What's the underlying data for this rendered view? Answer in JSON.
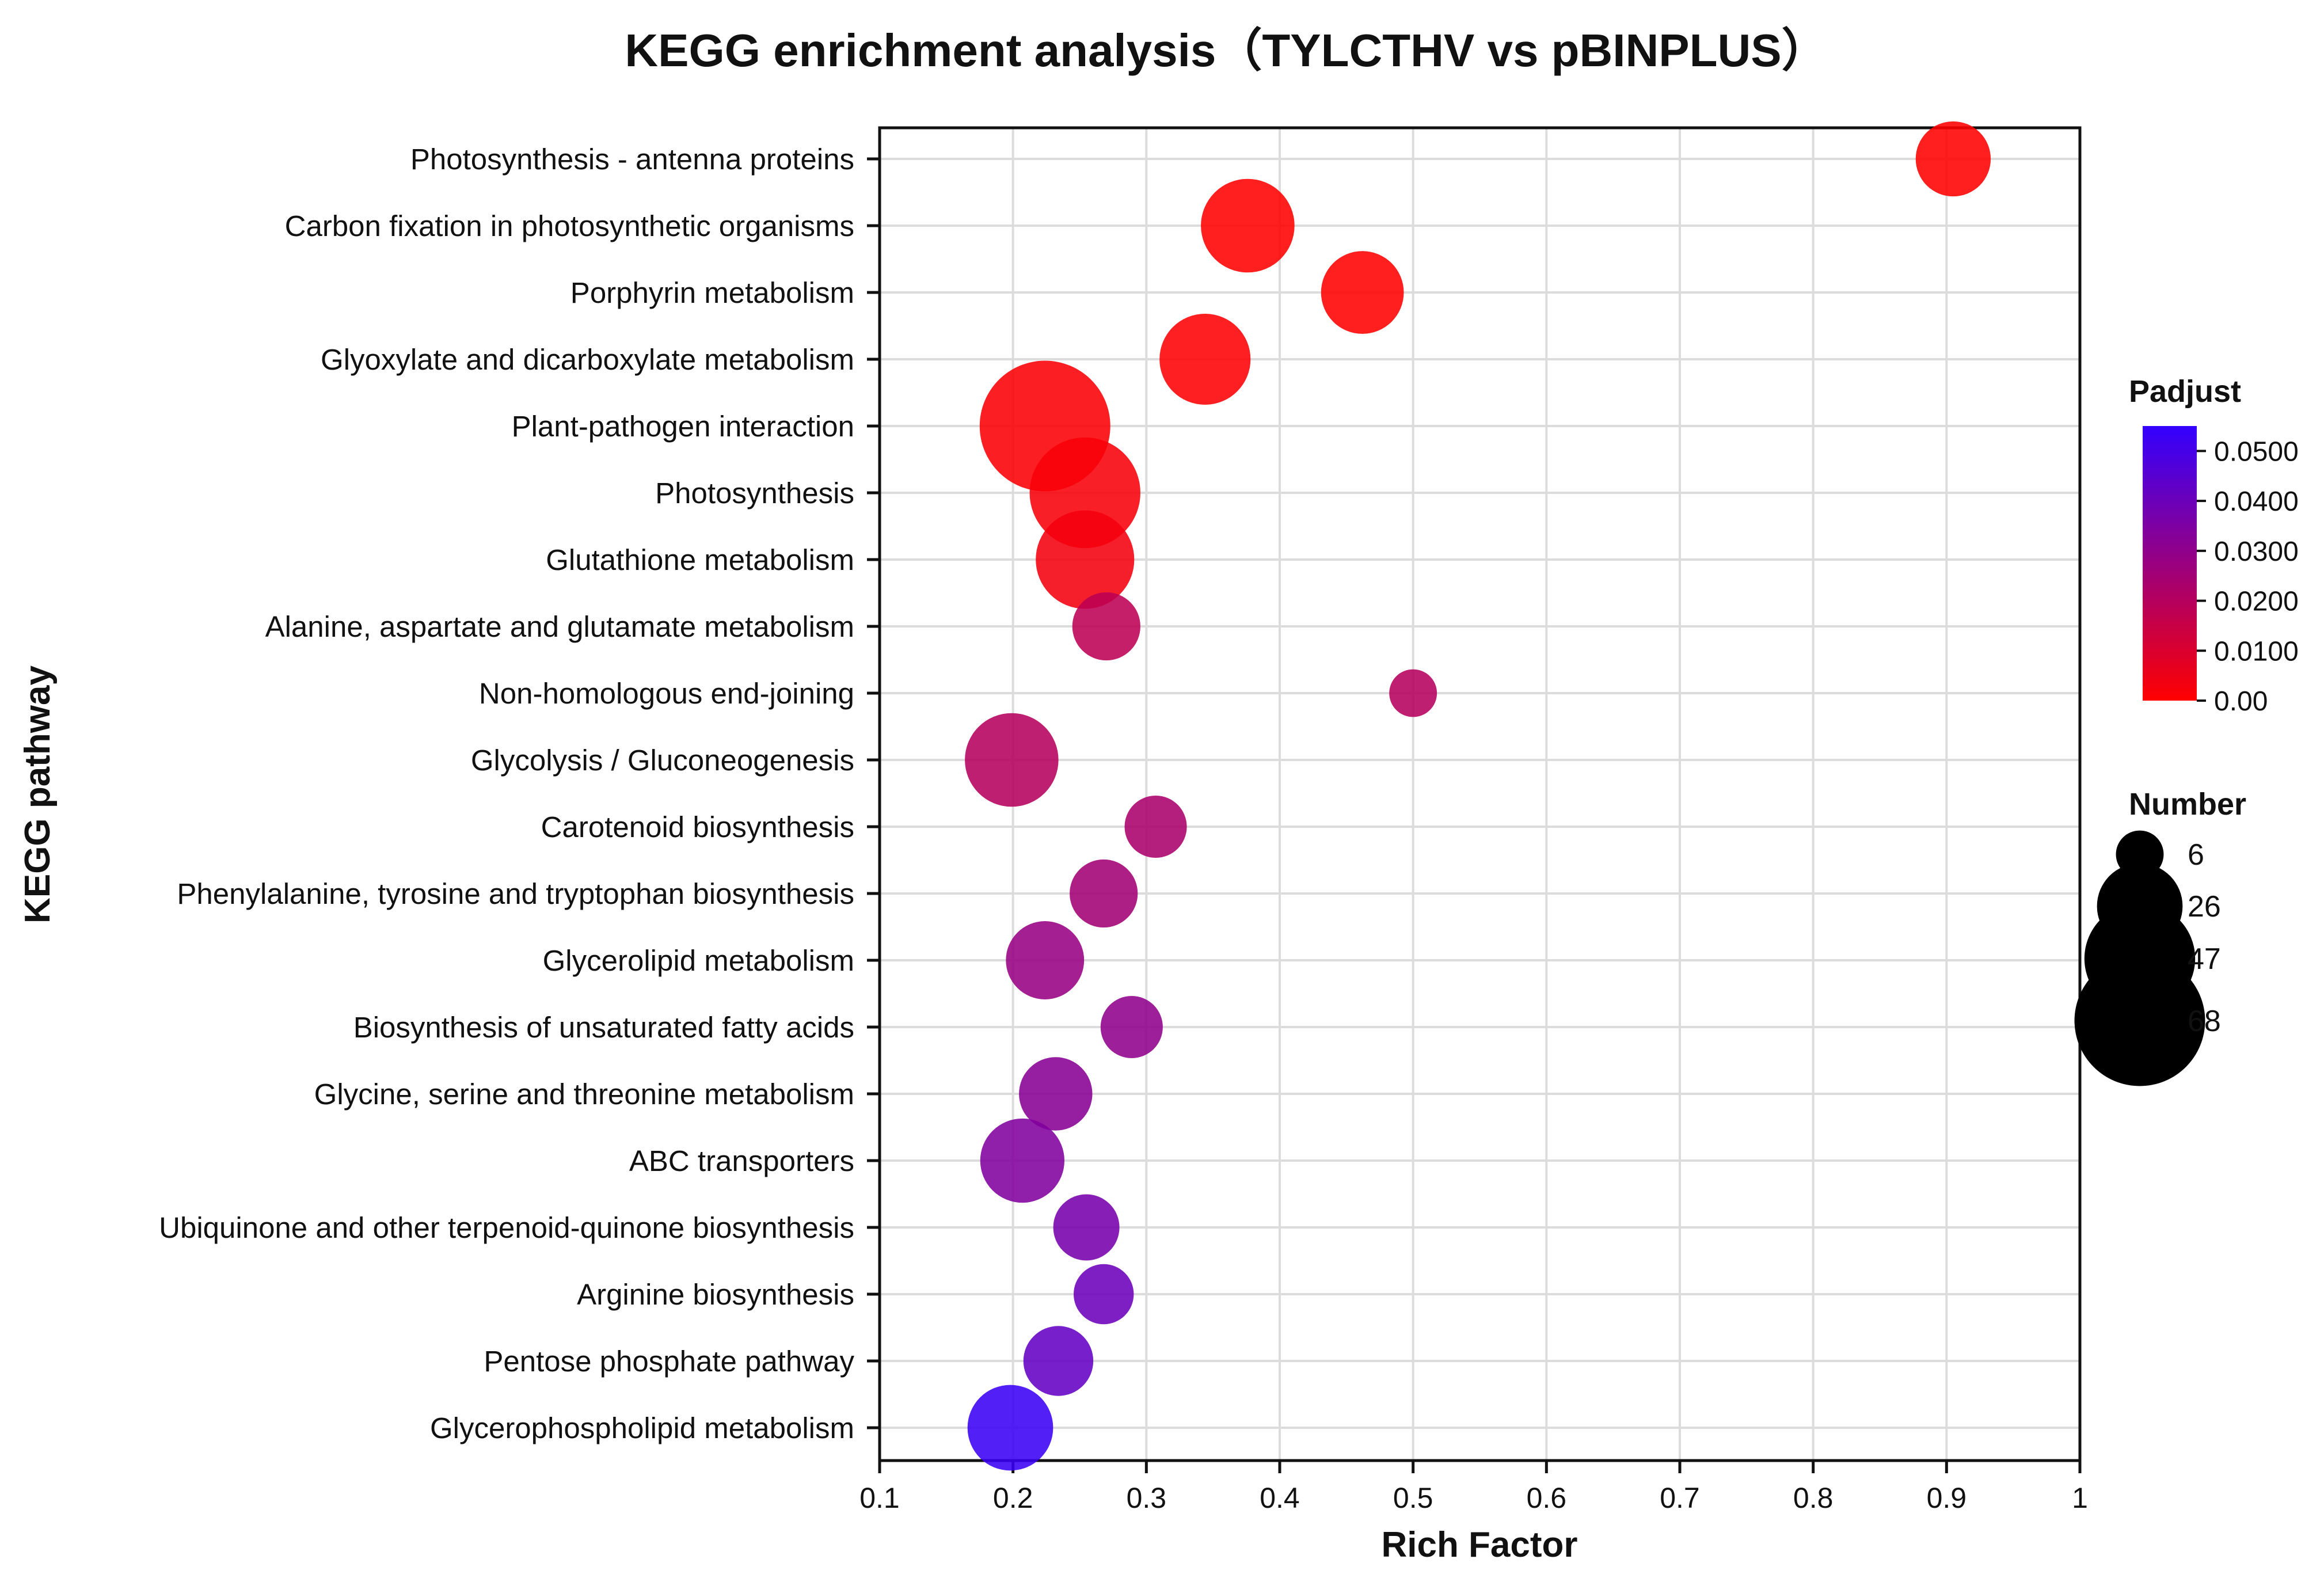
{
  "chart_data": {
    "type": "scatter",
    "title": "KEGG enrichment analysis（TYLCTHV  vs  pBINPLUS）",
    "xlabel": "Rich Factor",
    "ylabel": "KEGG pathway",
    "xlim": [
      0.1,
      1.0
    ],
    "xticks": [
      "0.1",
      "0.2",
      "0.3",
      "0.4",
      "0.5",
      "0.6",
      "0.7",
      "0.8",
      "0.9",
      "1"
    ],
    "grid": true,
    "color_legend": {
      "title": "Padjust",
      "min": 0.0,
      "max": 0.055,
      "low_color": "#ff0000",
      "high_color": "#3300ff",
      "ticks": [
        {
          "value": 0.05,
          "label": "0.0500"
        },
        {
          "value": 0.04,
          "label": "0.0400"
        },
        {
          "value": 0.03,
          "label": "0.0300"
        },
        {
          "value": 0.02,
          "label": "0.0200"
        },
        {
          "value": 0.01,
          "label": "0.0100"
        },
        {
          "value": 0.0,
          "label": "0.00"
        }
      ]
    },
    "size_legend": {
      "title": "Number",
      "entries": [
        {
          "value": 6,
          "label": "6"
        },
        {
          "value": 26,
          "label": "26"
        },
        {
          "value": 47,
          "label": "47"
        },
        {
          "value": 68,
          "label": "68"
        }
      ]
    },
    "points": [
      {
        "pathway": "Photosynthesis - antenna proteins",
        "rich_factor": 0.905,
        "number": 19,
        "padjust": 0.0
      },
      {
        "pathway": "Carbon fixation in photosynthetic organisms",
        "rich_factor": 0.376,
        "number": 32,
        "padjust": 0.0
      },
      {
        "pathway": "Porphyrin metabolism",
        "rich_factor": 0.462,
        "number": 24,
        "padjust": 0.0
      },
      {
        "pathway": "Glyoxylate and dicarboxylate metabolism",
        "rich_factor": 0.344,
        "number": 30,
        "padjust": 0.0005
      },
      {
        "pathway": "Plant-pathogen interaction",
        "rich_factor": 0.224,
        "number": 68,
        "padjust": 0.001
      },
      {
        "pathway": "Photosynthesis",
        "rich_factor": 0.254,
        "number": 47,
        "padjust": 0.002
      },
      {
        "pathway": "Glutathione metabolism",
        "rich_factor": 0.254,
        "number": 36,
        "padjust": 0.003
      },
      {
        "pathway": "Alanine, aspartate and glutamate metabolism",
        "rich_factor": 0.27,
        "number": 15,
        "padjust": 0.018
      },
      {
        "pathway": "Non-homologous end-joining",
        "rich_factor": 0.5,
        "number": 6,
        "padjust": 0.02
      },
      {
        "pathway": "Glycolysis / Gluconeogenesis",
        "rich_factor": 0.199,
        "number": 32,
        "padjust": 0.02
      },
      {
        "pathway": "Carotenoid biosynthesis",
        "rich_factor": 0.307,
        "number": 12,
        "padjust": 0.023
      },
      {
        "pathway": "Phenylalanine, tyrosine and tryptophan  biosynthesis",
        "rich_factor": 0.268,
        "number": 15,
        "padjust": 0.025
      },
      {
        "pathway": "Glycerolipid metabolism",
        "rich_factor": 0.224,
        "number": 21,
        "padjust": 0.028
      },
      {
        "pathway": "Biosynthesis of unsaturated fatty acids",
        "rich_factor": 0.289,
        "number": 12,
        "padjust": 0.03
      },
      {
        "pathway": "Glycine, serine and threonine metabolism",
        "rich_factor": 0.232,
        "number": 18,
        "padjust": 0.032
      },
      {
        "pathway": "ABC transporters",
        "rich_factor": 0.207,
        "number": 25,
        "padjust": 0.034
      },
      {
        "pathway": "Ubiquinone and other terpenoid-quinone biosynthesis",
        "rich_factor": 0.255,
        "number": 14,
        "padjust": 0.037
      },
      {
        "pathway": "Arginine biosynthesis",
        "rich_factor": 0.268,
        "number": 11,
        "padjust": 0.04
      },
      {
        "pathway": "Pentose phosphate pathway",
        "rich_factor": 0.234,
        "number": 16,
        "padjust": 0.042
      },
      {
        "pathway": "Glycerophospholipid metabolism",
        "rich_factor": 0.198,
        "number": 26,
        "padjust": 0.053
      }
    ]
  }
}
